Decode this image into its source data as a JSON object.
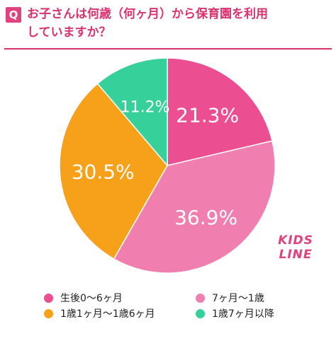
{
  "header": {
    "badge": "Q",
    "question_line1": "お子さんは何歳（何ヶ月）から保育園を利用",
    "question_line2": "していますか？"
  },
  "logo": {
    "line1": "KIDS",
    "line2": "LINE"
  },
  "colors": {
    "accent": "#d9336f",
    "slice_0": "#ec4f91",
    "slice_1": "#f07fb0",
    "slice_2": "#f7a11b",
    "slice_3": "#36d19a"
  },
  "chart_data": {
    "type": "pie",
    "categories": [
      "生後0〜6ヶ月",
      "7ヶ月〜1歳",
      "1歳1ヶ月〜1歳6ヶ月",
      "1歳7ヶ月以降"
    ],
    "values": [
      21.3,
      36.9,
      30.5,
      11.2
    ],
    "data_labels": [
      "21.3%",
      "36.9%",
      "30.5%",
      "11.2%"
    ],
    "legend_placement": "bottom"
  }
}
